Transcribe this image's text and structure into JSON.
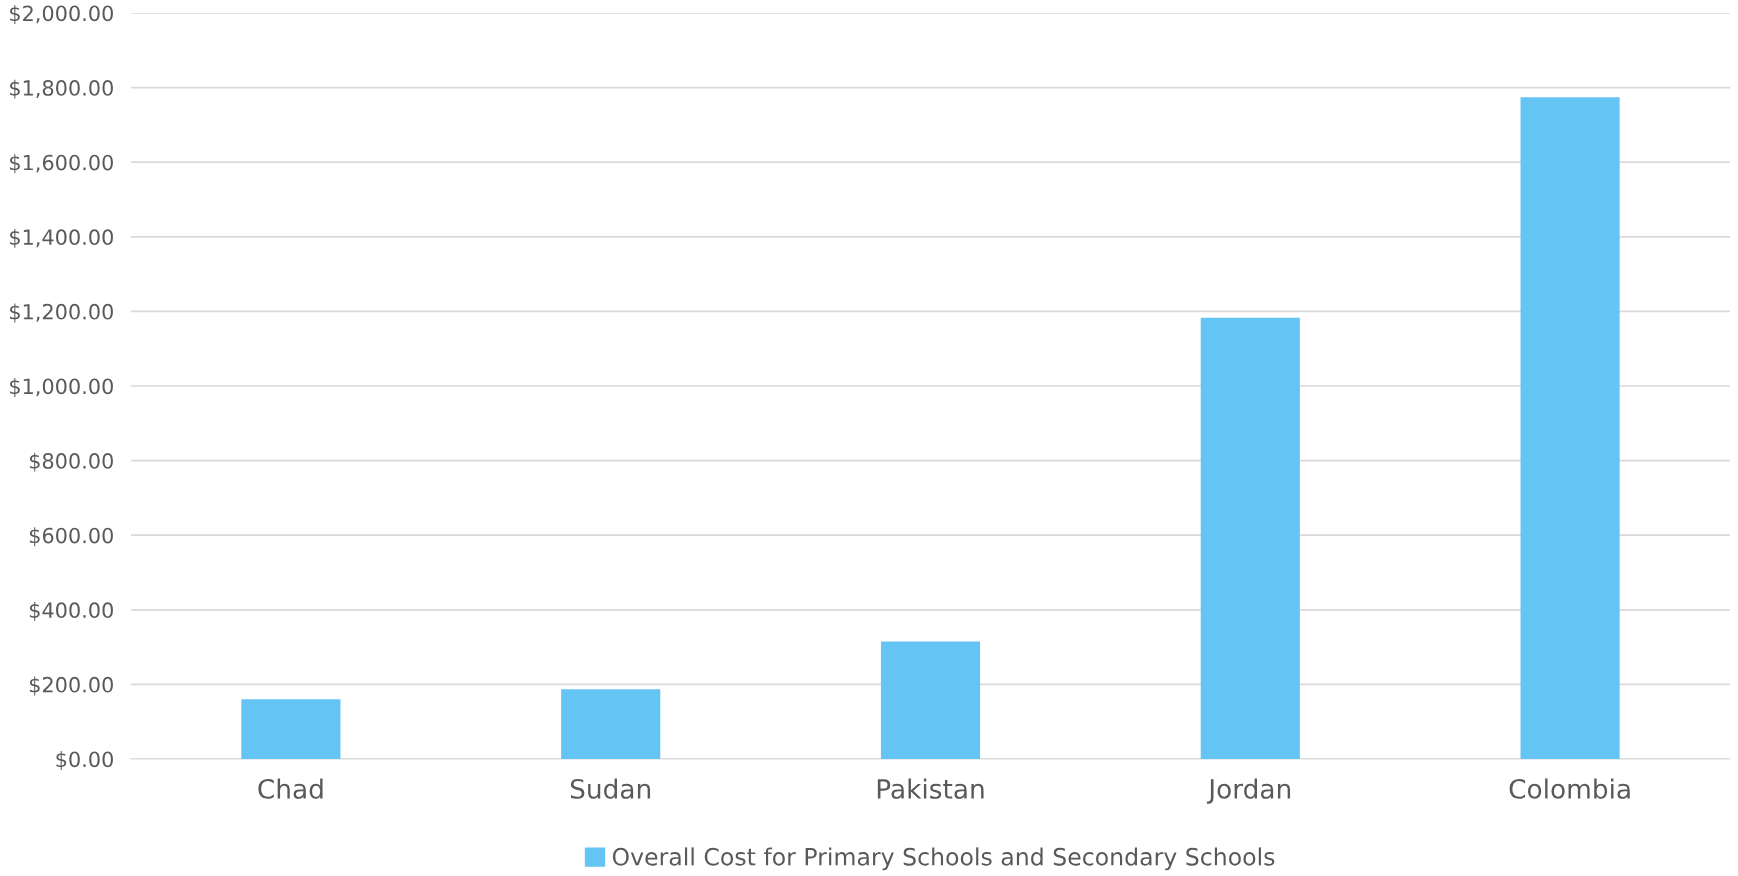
{
  "chart_data": {
    "type": "bar",
    "categories": [
      "Chad",
      "Sudan",
      "Pakistan",
      "Jordan",
      "Colombia"
    ],
    "series": [
      {
        "name": "Overall Cost for Primary Schools and Secondary Schools",
        "color": "#64c5f5",
        "values": [
          160,
          187,
          315,
          1183,
          1774
        ]
      }
    ],
    "ylim": [
      0,
      2000
    ],
    "yticks": [
      {
        "value": 0,
        "label": "$0.00"
      },
      {
        "value": 200,
        "label": "$200.00"
      },
      {
        "value": 400,
        "label": "$400.00"
      },
      {
        "value": 600,
        "label": "$600.00"
      },
      {
        "value": 800,
        "label": "$800.00"
      },
      {
        "value": 1000,
        "label": "$1,000.00"
      },
      {
        "value": 1200,
        "label": "$1,200.00"
      },
      {
        "value": 1400,
        "label": "$1,400.00"
      },
      {
        "value": 1600,
        "label": "$1,600.00"
      },
      {
        "value": 1800,
        "label": "$1,800.00"
      },
      {
        "value": 2000,
        "label": "$2,000.00"
      }
    ],
    "grid": "y",
    "legend": "bottom"
  }
}
